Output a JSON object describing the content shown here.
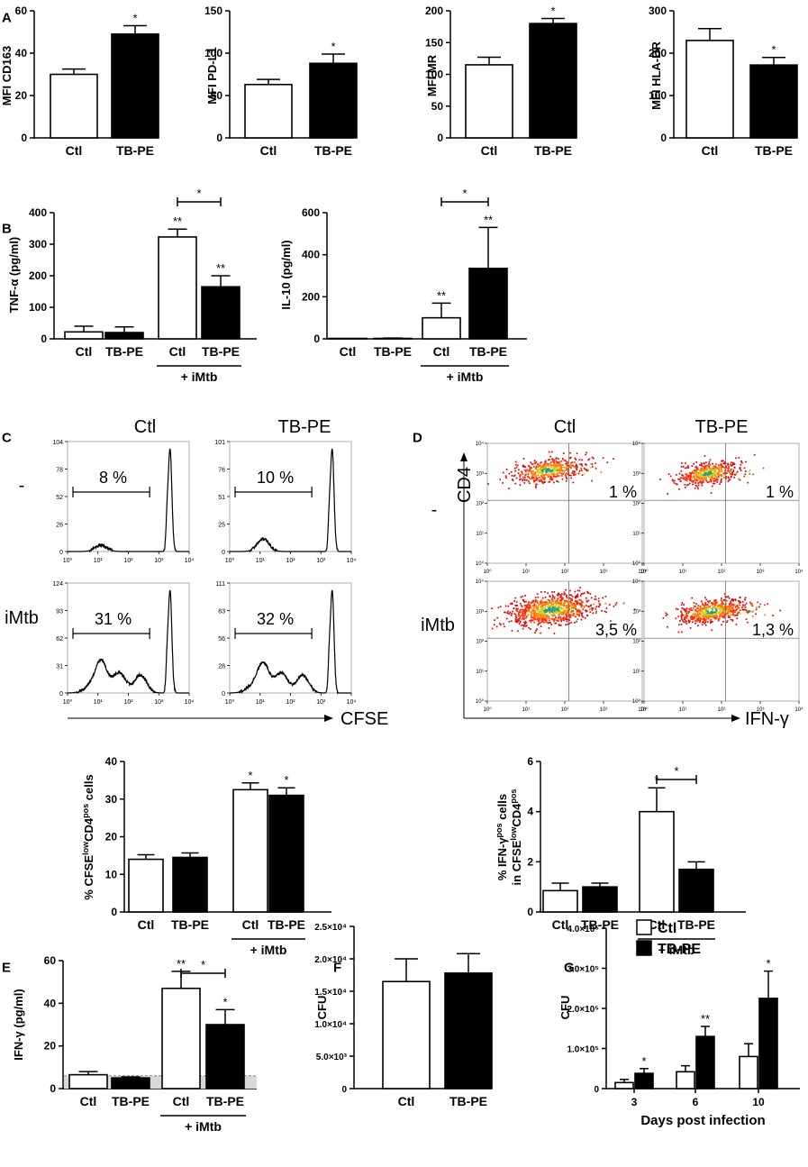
{
  "chart_data": [
    {
      "id": "A1",
      "panel": "A",
      "type": "bar",
      "ylabel": "MFI CD163",
      "categories": [
        "Ctl",
        "TB-PE"
      ],
      "values": [
        30,
        49
      ],
      "errors": [
        2.5,
        4
      ],
      "fills": [
        "white",
        "black"
      ],
      "ylim": [
        0,
        60
      ],
      "yticks": [
        "0",
        "20",
        "40",
        "60"
      ],
      "sig": [
        {
          "bar": 1,
          "label": "*"
        }
      ]
    },
    {
      "id": "A2",
      "type": "bar",
      "ylabel": "MFI PD-L1",
      "categories": [
        "Ctl",
        "TB-PE"
      ],
      "values": [
        63,
        88
      ],
      "errors": [
        6,
        11
      ],
      "fills": [
        "white",
        "black"
      ],
      "ylim": [
        0,
        150
      ],
      "yticks": [
        "0",
        "50",
        "100",
        "150"
      ],
      "sig": [
        {
          "bar": 1,
          "label": "*"
        }
      ]
    },
    {
      "id": "A3",
      "type": "bar",
      "ylabel": "MFI MR",
      "categories": [
        "Ctl",
        "TB-PE"
      ],
      "values": [
        115,
        180
      ],
      "errors": [
        12,
        8
      ],
      "fills": [
        "white",
        "black"
      ],
      "ylim": [
        0,
        200
      ],
      "yticks": [
        "0",
        "50",
        "100",
        "150",
        "200"
      ],
      "sig": [
        {
          "bar": 1,
          "label": "*"
        }
      ]
    },
    {
      "id": "A4",
      "type": "bar",
      "ylabel": "MFI HLA-DR",
      "categories": [
        "Ctl",
        "TB-PE"
      ],
      "values": [
        230,
        172
      ],
      "errors": [
        28,
        18
      ],
      "fills": [
        "white",
        "black"
      ],
      "ylim": [
        0,
        300
      ],
      "yticks": [
        "0",
        "100",
        "200",
        "300"
      ],
      "sig": [
        {
          "bar": 1,
          "label": "*"
        }
      ]
    },
    {
      "id": "B1",
      "panel": "B",
      "type": "bar",
      "ylabel": "TNF-α (pg/ml)",
      "categories": [
        "Ctl",
        "TB-PE",
        "Ctl",
        "TB-PE"
      ],
      "values": [
        22,
        20,
        323,
        165
      ],
      "errors": [
        18,
        18,
        25,
        35
      ],
      "fills": [
        "white",
        "black",
        "white",
        "black"
      ],
      "ylim": [
        0,
        400
      ],
      "yticks": [
        "0",
        "100",
        "200",
        "300",
        "400"
      ],
      "sig": [
        {
          "bar": 2,
          "label": "**"
        },
        {
          "bar": 3,
          "label": "**"
        }
      ],
      "brackets": [
        {
          "from": 2,
          "to": 3,
          "label": "*"
        }
      ],
      "group_label": {
        "from": 2,
        "to": 3,
        "label": "+ iMtb"
      }
    },
    {
      "id": "B2",
      "type": "bar",
      "ylabel": "IL-10 (pg/ml)",
      "categories": [
        "Ctl",
        "TB-PE",
        "Ctl",
        "TB-PE"
      ],
      "values": [
        0,
        2,
        100,
        335
      ],
      "errors": [
        0,
        2,
        70,
        195
      ],
      "fills": [
        "white",
        "black",
        "white",
        "black"
      ],
      "ylim": [
        0,
        600
      ],
      "yticks": [
        "0",
        "200",
        "400",
        "600"
      ],
      "sig": [
        {
          "bar": 2,
          "label": "**"
        },
        {
          "bar": 3,
          "label": "**"
        }
      ],
      "brackets": [
        {
          "from": 2,
          "to": 3,
          "label": "*"
        }
      ],
      "group_label": {
        "from": 2,
        "to": 3,
        "label": "+ iMtb"
      }
    },
    {
      "id": "C2",
      "type": "bar",
      "ylabel": "% CFSElowCD4pos cells",
      "categories": [
        "Ctl",
        "TB-PE",
        "Ctl",
        "TB-PE"
      ],
      "values": [
        14,
        14.5,
        32.5,
        31
      ],
      "errors": [
        1.2,
        1.2,
        1.8,
        2
      ],
      "fills": [
        "white",
        "black",
        "white",
        "black"
      ],
      "ylim": [
        0,
        40
      ],
      "yticks": [
        "0",
        "10",
        "20",
        "30",
        "40"
      ],
      "sig": [
        {
          "bar": 2,
          "label": "*"
        },
        {
          "bar": 3,
          "label": "*"
        }
      ],
      "group_label": {
        "from": 2,
        "to": 3,
        "label": "+ iMtb"
      }
    },
    {
      "id": "D2",
      "type": "bar",
      "ylabel": "% IFN-γpos in CFSElowCD4pos cells",
      "categories": [
        "Ctl",
        "TB-PE",
        "Ctl",
        "TB-PE"
      ],
      "values": [
        0.85,
        1.0,
        4.0,
        1.7
      ],
      "errors": [
        0.3,
        0.15,
        0.95,
        0.3
      ],
      "fills": [
        "white",
        "black",
        "white",
        "black"
      ],
      "ylim": [
        0,
        6
      ],
      "yticks": [
        "0",
        "2",
        "4",
        "6"
      ],
      "sig": [
        {
          "bar": 2,
          "label": "*"
        }
      ],
      "brackets": [
        {
          "from": 2,
          "to": 3,
          "label": "*"
        }
      ],
      "group_label": {
        "from": 2,
        "to": 3,
        "label": "+ iMtb"
      }
    },
    {
      "id": "E",
      "panel": "E",
      "type": "bar",
      "ylabel": "IFN-γ (pg/ml)",
      "categories": [
        "Ctl",
        "TB-PE",
        "Ctl",
        "TB-PE"
      ],
      "values": [
        6.5,
        5,
        47,
        30
      ],
      "errors": [
        1.5,
        0.5,
        8,
        7
      ],
      "fills": [
        "white",
        "black",
        "white",
        "black"
      ],
      "ylim": [
        0,
        60
      ],
      "yticks": [
        "0",
        "20",
        "40",
        "60"
      ],
      "sig": [
        {
          "bar": 2,
          "label": "**"
        },
        {
          "bar": 3,
          "label": "*"
        }
      ],
      "brackets": [
        {
          "from": 2,
          "to": 3,
          "label": "*"
        }
      ],
      "group_label": {
        "from": 2,
        "to": 3,
        "label": "+ iMtb"
      },
      "detection_limit": 6
    },
    {
      "id": "F",
      "panel": "F",
      "type": "bar",
      "ylabel": "CFU",
      "categories": [
        "Ctl",
        "TB-PE"
      ],
      "values": [
        16500,
        17800
      ],
      "errors": [
        3500,
        3000
      ],
      "fills": [
        "white",
        "black"
      ],
      "ylim": [
        0,
        25000
      ],
      "yticks": [
        "0",
        "5.0×10³",
        "1.0×10⁴",
        "1.5×10⁴",
        "2.0×10⁴",
        "2.5×10⁴"
      ]
    },
    {
      "id": "G",
      "panel": "G",
      "type": "bar",
      "ylabel": "CFU",
      "xlabel": "Days post infection",
      "categories": [
        "3",
        "6",
        "10"
      ],
      "series": [
        {
          "name": "Ctl",
          "fill": "white",
          "values": [
            15000,
            42000,
            80000
          ],
          "errors": [
            8000,
            15000,
            32000
          ]
        },
        {
          "name": "TB-PE",
          "fill": "black",
          "values": [
            38000,
            130000,
            225000
          ],
          "errors": [
            12000,
            25000,
            68000
          ]
        }
      ],
      "sig": [
        {
          "group": 0,
          "series": 1,
          "label": "*"
        },
        {
          "group": 1,
          "series": 1,
          "label": "**"
        },
        {
          "group": 2,
          "series": 1,
          "label": "*"
        }
      ],
      "ylim": [
        0,
        400000
      ],
      "yticks": [
        "0",
        "1.0×10⁵",
        "2.0×10⁵",
        "3.0×10⁵",
        "4.0×10⁵"
      ],
      "legend": "top-left"
    },
    {
      "id": "C1",
      "panel": "C",
      "type": "histogram",
      "xlabel": "CFSE",
      "col_titles": [
        "Ctl",
        "TB-PE"
      ],
      "row_labels": [
        "-",
        "iMtb"
      ],
      "x_ticks": [
        "10⁰",
        "10¹",
        "10²",
        "10³",
        "10⁴"
      ],
      "plots": [
        {
          "row": 0,
          "col": 0,
          "gate_label": "8 %",
          "y_ticks": [
            "0",
            "26",
            "52",
            "78",
            "104"
          ],
          "small_peak": 0.06,
          "tail": 0
        },
        {
          "row": 0,
          "col": 1,
          "gate_label": "10 %",
          "y_ticks": [
            "0",
            "25",
            "51",
            "76",
            "101"
          ],
          "small_peak": 0.12,
          "tail": 0
        },
        {
          "row": 1,
          "col": 0,
          "gate_label": "31 %",
          "y_ticks": [
            "0",
            "31",
            "62",
            "93",
            "124"
          ],
          "small_peak": 0.3,
          "tail": 1
        },
        {
          "row": 1,
          "col": 1,
          "gate_label": "32 %",
          "y_ticks": [
            "0",
            "28",
            "56",
            "83",
            "111"
          ],
          "small_peak": 0.28,
          "tail": 1
        }
      ]
    },
    {
      "id": "D1",
      "panel": "D",
      "type": "scatter",
      "xlabel": "IFN-γ",
      "ylabel": "CD4",
      "col_titles": [
        "Ctl",
        "TB-PE"
      ],
      "row_labels": [
        "-",
        "iMtb"
      ],
      "tick_labels": [
        "10⁰",
        "10¹",
        "10²",
        "10³",
        "10⁴"
      ],
      "plots": [
        {
          "row": 0,
          "col": 0,
          "quadrant_label": "1 %",
          "cx": 1.55,
          "cy": 3.1,
          "spread": 0.35,
          "n": 520
        },
        {
          "row": 0,
          "col": 1,
          "quadrant_label": "1 %",
          "cx": 1.65,
          "cy": 3.0,
          "spread": 0.32,
          "n": 480
        },
        {
          "row": 1,
          "col": 0,
          "quadrant_label": "3,5 %",
          "cx": 1.65,
          "cy": 3.05,
          "spread": 0.45,
          "n": 900
        },
        {
          "row": 1,
          "col": 1,
          "quadrant_label": "1,3 %",
          "cx": 1.75,
          "cy": 3.0,
          "spread": 0.36,
          "n": 620
        }
      ]
    }
  ]
}
